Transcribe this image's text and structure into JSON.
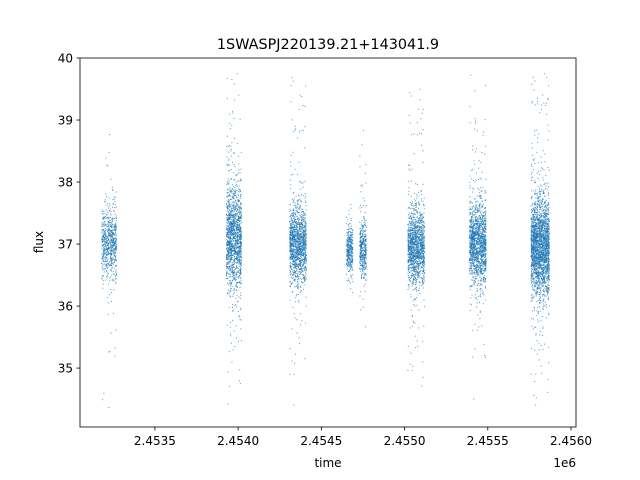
{
  "chart_data": {
    "type": "scatter",
    "title": "1SWASPJ220139.21+143041.9",
    "xlabel": "time",
    "ylabel": "flux",
    "x_offset_label": "1e6",
    "xlim": [
      2.45305,
      2.45603
    ],
    "ylim": [
      34.05,
      40.0
    ],
    "x_ticks": [
      2.4535,
      2.454,
      2.4545,
      2.455,
      2.4555,
      2.456
    ],
    "x_tick_labels": [
      "2.4535",
      "2.4540",
      "2.4545",
      "2.4550",
      "2.4555",
      "2.4560"
    ],
    "y_ticks": [
      35,
      36,
      37,
      38,
      39,
      40
    ],
    "y_tick_labels": [
      "35",
      "36",
      "37",
      "38",
      "39",
      "40"
    ],
    "grid": false,
    "marker_color": "#1f77b4",
    "series": [
      {
        "clusters": [
          {
            "x_start": 2.45318,
            "x_end": 2.45327,
            "center": 37.0,
            "spread": 0.28,
            "y_min": 34.3,
            "y_max": 39.65,
            "density": 700
          },
          {
            "x_start": 2.45393,
            "x_end": 2.45402,
            "center": 37.1,
            "spread": 0.42,
            "y_min": 34.3,
            "y_max": 39.75,
            "density": 1500
          },
          {
            "x_start": 2.45431,
            "x_end": 2.45441,
            "center": 37.0,
            "spread": 0.3,
            "y_min": 34.3,
            "y_max": 39.75,
            "density": 1400
          },
          {
            "x_start": 2.45465,
            "x_end": 2.45469,
            "center": 36.9,
            "spread": 0.18,
            "y_min": 35.9,
            "y_max": 38.1,
            "density": 350
          },
          {
            "x_start": 2.45473,
            "x_end": 2.45477,
            "center": 36.9,
            "spread": 0.22,
            "y_min": 34.5,
            "y_max": 39.7,
            "density": 400
          },
          {
            "x_start": 2.45502,
            "x_end": 2.45512,
            "center": 36.95,
            "spread": 0.3,
            "y_min": 34.4,
            "y_max": 39.5,
            "density": 1400
          },
          {
            "x_start": 2.45539,
            "x_end": 2.45549,
            "center": 37.0,
            "spread": 0.32,
            "y_min": 34.4,
            "y_max": 39.75,
            "density": 1500
          },
          {
            "x_start": 2.45576,
            "x_end": 2.45587,
            "center": 36.95,
            "spread": 0.38,
            "y_min": 34.3,
            "y_max": 39.75,
            "density": 2400
          }
        ]
      }
    ]
  }
}
